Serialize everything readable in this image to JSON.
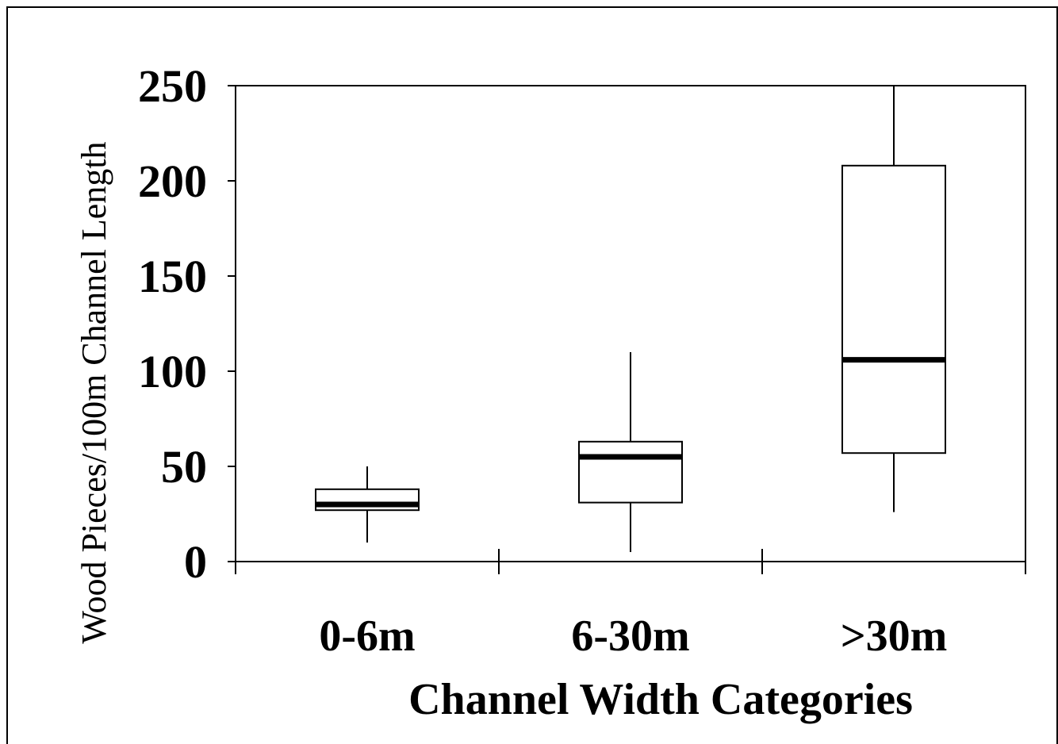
{
  "chart_data": {
    "type": "box",
    "xlabel": "Channel Width Categories",
    "ylabel": "Wood Pieces/100m Channel Length",
    "ylim": [
      0,
      250
    ],
    "yticks": [
      "0",
      "50",
      "100",
      "150",
      "200",
      "250"
    ],
    "yticks_values": [
      0,
      50,
      100,
      150,
      200,
      250
    ],
    "categories": [
      "0-6m",
      "6-30m",
      ">30m"
    ],
    "boxes": [
      {
        "category": "0-6m",
        "whisker_low": 10,
        "q1": 27,
        "median": 30,
        "q3": 38,
        "whisker_high": 50
      },
      {
        "category": "6-30m",
        "whisker_low": 5,
        "q1": 31,
        "median": 55,
        "q3": 63,
        "whisker_high": 110
      },
      {
        "category": ">30m",
        "whisker_low": 26,
        "q1": 57,
        "median": 106,
        "q3": 208,
        "whisker_high": 250
      }
    ],
    "grid": false,
    "legend": "none"
  }
}
